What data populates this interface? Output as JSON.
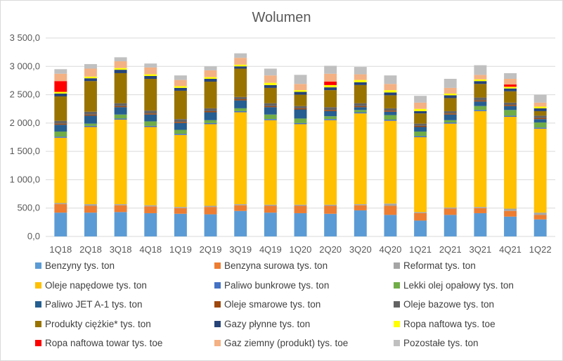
{
  "chart_data": {
    "type": "bar",
    "stacked": true,
    "title": "Wolumen",
    "xlabel": "",
    "ylabel": "",
    "ylim": [
      0,
      3500
    ],
    "yticks": [
      "0,0",
      "500,0",
      "1 000,0",
      "1 500,0",
      "2 000,0",
      "2 500,0",
      "3 000,0",
      "3 500,0"
    ],
    "grid": true,
    "legend_position": "bottom",
    "categories": [
      "1Q18",
      "2Q18",
      "3Q18",
      "4Q18",
      "1Q19",
      "2Q19",
      "3Q19",
      "4Q19",
      "1Q20",
      "2Q20",
      "3Q20",
      "4Q20",
      "1Q21",
      "2Q21",
      "3Q21",
      "4Q21",
      "1Q22"
    ],
    "series": [
      {
        "name": "Benzyny tys. ton",
        "color": "#5b9bd5",
        "values": [
          420,
          420,
          430,
          410,
          400,
          390,
          450,
          420,
          410,
          400,
          460,
          380,
          280,
          380,
          410,
          350,
          300
        ]
      },
      {
        "name": "Benzyna surowa tys. ton",
        "color": "#ed7d31",
        "values": [
          150,
          120,
          120,
          120,
          100,
          130,
          100,
          120,
          130,
          140,
          90,
          160,
          130,
          110,
          90,
          100,
          80
        ]
      },
      {
        "name": "Reformat tys. ton",
        "color": "#a5a5a5",
        "values": [
          20,
          30,
          20,
          20,
          20,
          20,
          20,
          20,
          20,
          20,
          20,
          40,
          20,
          20,
          20,
          40,
          40
        ]
      },
      {
        "name": "Oleje napędowe tys. ton",
        "color": "#ffc000",
        "values": [
          1150,
          1360,
          1490,
          1380,
          1270,
          1440,
          1620,
          1490,
          1420,
          1490,
          1600,
          1460,
          1320,
          1480,
          1690,
          1620,
          1480
        ]
      },
      {
        "name": "Paliwo bunkrowe tys. ton",
        "color": "#4472c4",
        "values": [
          20,
          20,
          20,
          20,
          20,
          20,
          20,
          20,
          20,
          20,
          20,
          20,
          20,
          20,
          20,
          20,
          20
        ]
      },
      {
        "name": "Lekki olej opałowy tys. ton",
        "color": "#70ad47",
        "values": [
          90,
          40,
          70,
          80,
          70,
          50,
          50,
          80,
          80,
          50,
          40,
          80,
          80,
          40,
          70,
          100,
          90
        ]
      },
      {
        "name": "Paliwo JET A-1 tys. ton",
        "color": "#255e91",
        "values": [
          120,
          140,
          130,
          120,
          120,
          140,
          140,
          130,
          160,
          90,
          50,
          60,
          80,
          100,
          80,
          70,
          60
        ]
      },
      {
        "name": "Oleje smarowe tys. ton",
        "color": "#9e480e",
        "values": [
          20,
          20,
          20,
          20,
          20,
          20,
          20,
          20,
          20,
          20,
          20,
          20,
          20,
          20,
          20,
          20,
          20
        ]
      },
      {
        "name": "Oleje bazowe tys. ton",
        "color": "#636363",
        "values": [
          50,
          50,
          50,
          50,
          50,
          50,
          40,
          50,
          40,
          50,
          50,
          40,
          40,
          40,
          50,
          40,
          40
        ]
      },
      {
        "name": "Produkty ciężkie* tys. ton",
        "color": "#997300",
        "values": [
          430,
          540,
          530,
          560,
          500,
          470,
          500,
          270,
          200,
          300,
          320,
          230,
          180,
          230,
          240,
          200,
          80
        ]
      },
      {
        "name": "Gazy płynne tys. ton",
        "color": "#264478",
        "values": [
          50,
          50,
          60,
          50,
          50,
          50,
          40,
          50,
          50,
          50,
          50,
          50,
          40,
          50,
          50,
          50,
          50
        ]
      },
      {
        "name": "Ropa naftowa tys. toe",
        "color": "#ffff00",
        "values": [
          30,
          30,
          30,
          30,
          30,
          30,
          30,
          40,
          30,
          40,
          40,
          40,
          40,
          30,
          30,
          30,
          30
        ]
      },
      {
        "name": "Ropa naftowa towar tys. toe",
        "color": "#ff0000",
        "values": [
          190,
          0,
          0,
          0,
          0,
          0,
          0,
          0,
          0,
          60,
          0,
          0,
          0,
          0,
          0,
          40,
          0
        ]
      },
      {
        "name": "Gaz ziemny (produkt) tys. toe",
        "color": "#f4b183",
        "values": [
          130,
          140,
          120,
          120,
          110,
          120,
          120,
          130,
          110,
          140,
          100,
          110,
          110,
          100,
          80,
          100,
          70
        ]
      },
      {
        "name": "Pozostałe tys. ton",
        "color": "#c0c0c0",
        "values": [
          80,
          80,
          70,
          70,
          80,
          70,
          80,
          120,
          160,
          140,
          130,
          150,
          120,
          160,
          170,
          100,
          140
        ]
      }
    ]
  }
}
